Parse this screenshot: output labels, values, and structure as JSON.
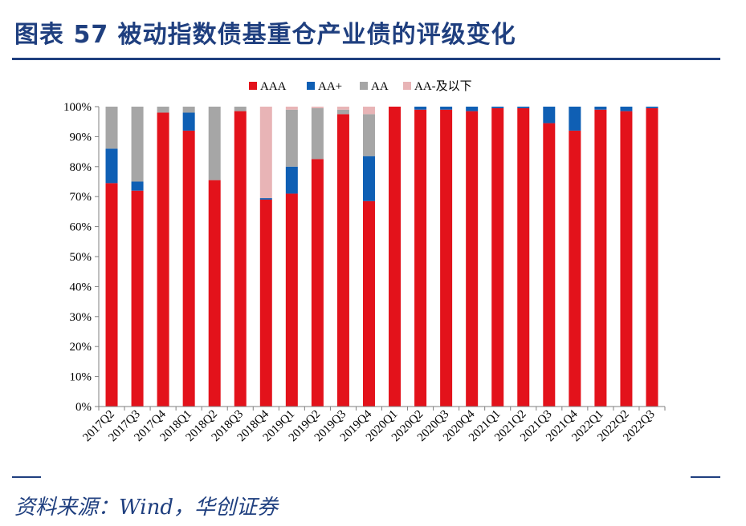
{
  "title": "图表 57  被动指数债基重仓产业债的评级变化",
  "source": "资料来源：Wind，华创证券",
  "chart_data": {
    "type": "bar",
    "stacked": true,
    "categories": [
      "2017Q2",
      "2017Q3",
      "2017Q4",
      "2018Q1",
      "2018Q2",
      "2018Q3",
      "2018Q4",
      "2019Q1",
      "2019Q2",
      "2019Q3",
      "2019Q4",
      "2020Q1",
      "2020Q2",
      "2020Q3",
      "2020Q4",
      "2021Q1",
      "2021Q2",
      "2021Q3",
      "2021Q4",
      "2022Q1",
      "2022Q2",
      "2022Q3"
    ],
    "series": [
      {
        "name": "AAA",
        "color": "#e3121b",
        "values": [
          74.5,
          72,
          98,
          92,
          75.5,
          98.5,
          69,
          71,
          82.5,
          97.5,
          68.5,
          100,
          99,
          99,
          98.5,
          99.5,
          99.5,
          94.5,
          92,
          99,
          98.5,
          99.5
        ]
      },
      {
        "name": "AA+",
        "color": "#0f5fb4",
        "values": [
          11.5,
          3,
          0,
          6,
          0,
          0,
          0.5,
          9,
          0,
          0,
          15,
          0,
          1,
          1,
          1.5,
          0.5,
          0.5,
          5.5,
          8,
          1,
          1.5,
          0.5
        ]
      },
      {
        "name": "AA",
        "color": "#a6a6a6",
        "values": [
          14,
          25,
          2,
          2,
          24.5,
          1.5,
          0,
          19,
          17,
          1.5,
          14,
          0,
          0,
          0,
          0,
          0,
          0,
          0,
          0,
          0,
          0,
          0
        ]
      },
      {
        "name": "AA-及以下",
        "color": "#e8b4b6",
        "values": [
          0,
          0,
          0,
          0,
          0,
          0,
          30.5,
          1,
          0.5,
          1,
          2.5,
          0,
          0,
          0,
          0,
          0,
          0,
          0,
          0,
          0,
          0,
          0
        ]
      }
    ],
    "yticks": [
      "0%",
      "10%",
      "20%",
      "30%",
      "40%",
      "50%",
      "60%",
      "70%",
      "80%",
      "90%",
      "100%"
    ],
    "ylim": [
      0,
      100
    ],
    "legend_position": "top",
    "grid": false
  }
}
